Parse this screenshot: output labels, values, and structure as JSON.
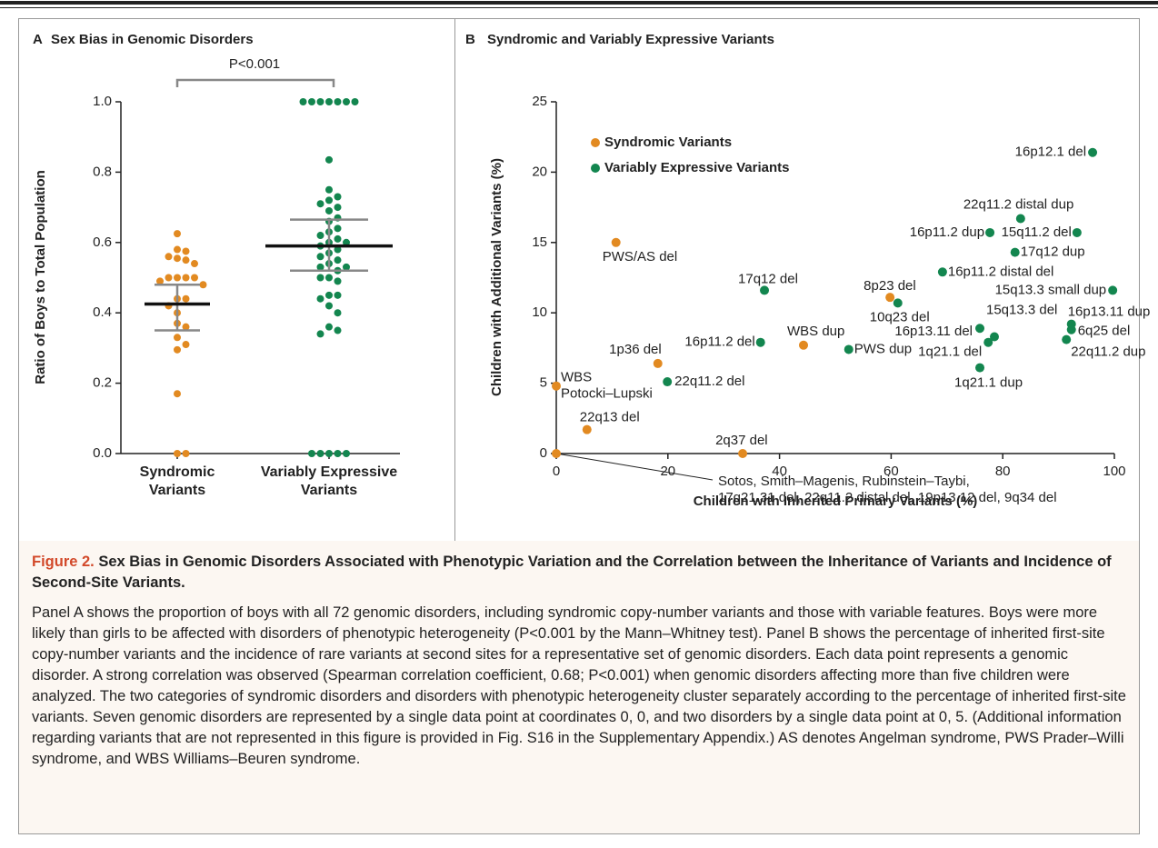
{
  "chart_data": [
    {
      "type": "strip",
      "panel": "A",
      "title": "Sex Bias in Genomic Disorders",
      "annotation": "P<0.001",
      "y_label": "Ratio of Boys to Total Population",
      "categories": [
        "Syndromic Variants",
        "Variably Expressive Variants"
      ],
      "ylim": [
        0,
        1
      ],
      "yticks": [
        {
          "value": 0,
          "label": "0.0"
        },
        0.2,
        0.4,
        0.6,
        0.8,
        {
          "value": 1,
          "label": "1.0"
        }
      ],
      "series": [
        {
          "color": "#e28a21",
          "center": 0.425,
          "range": [
            0.35,
            0.48
          ],
          "values": [
            0.625,
            0.58,
            0.575,
            0.56,
            0.555,
            0.55,
            0.54,
            0.5,
            0.5,
            0.5,
            0.5,
            0.49,
            0.48,
            0.44,
            0.44,
            0.42,
            0.4,
            0.37,
            0.36,
            0.33,
            0.31,
            0.295,
            0.17,
            0,
            0
          ]
        },
        {
          "color": "#13864f",
          "center": 0.59,
          "range": [
            0.52,
            0.665
          ],
          "values": [
            1,
            1,
            1,
            1,
            1,
            1,
            1,
            0.835,
            0.75,
            0.73,
            0.72,
            0.71,
            0.7,
            0.69,
            0.67,
            0.66,
            0.64,
            0.63,
            0.62,
            0.61,
            0.6,
            0.6,
            0.59,
            0.58,
            0.57,
            0.56,
            0.55,
            0.54,
            0.53,
            0.53,
            0.52,
            0.5,
            0.5,
            0.49,
            0.45,
            0.45,
            0.44,
            0.42,
            0.4,
            0.36,
            0.35,
            0.34,
            0,
            0,
            0,
            0,
            0
          ]
        }
      ]
    },
    {
      "type": "scatter",
      "panel": "B",
      "title": "Syndromic and Variably Expressive Variants",
      "x_label": "Children with Inherited Primary Variants (%)",
      "y_label": "Children with Additional Variants (%)",
      "xlim": [
        0,
        100
      ],
      "ylim": [
        0,
        25
      ],
      "xticks": [
        0,
        20,
        40,
        60,
        80,
        100
      ],
      "yticks": [
        0,
        5,
        10,
        15,
        20,
        25
      ],
      "legend": "upper left",
      "series": [
        {
          "name": "Syndromic Variants",
          "color": "#e28a21",
          "x": [
            0,
            5.5,
            0,
            18.2,
            10.7,
            44.3,
            59.8,
            33.4
          ],
          "values": [
            4.8,
            1.7,
            0,
            6.4,
            15,
            7.7,
            11.1,
            0
          ],
          "labels": [
            [
              "WBS",
              "Potocki–Lupski"
            ],
            "22q13 del",
            [
              "Sotos, Smith–Magenis, Rubinstein–Taybi,",
              "17q21.31 del, 22q11.2 distal del, 19p13.12 del, 9q34 del"
            ],
            "1p36 del",
            "PWS/AS del",
            "WBS dup",
            "8p23 del",
            "2q37 del"
          ]
        },
        {
          "name": "Variably Expressive Variants",
          "color": "#13864f",
          "x": [
            19.9,
            36.6,
            37.3,
            52.4,
            61.2,
            69.2,
            77.7,
            83.2,
            93.3,
            82.2,
            96.1,
            99.7,
            78.5,
            75.9,
            77.4,
            75.9,
            92.3,
            92.3,
            91.4
          ],
          "values": [
            5.1,
            7.9,
            11.6,
            7.4,
            10.7,
            12.9,
            15.7,
            16.7,
            15.7,
            14.3,
            21.4,
            11.6,
            8.3,
            8.9,
            7.9,
            6.1,
            9.2,
            8.8,
            8.1
          ],
          "labels": [
            "22q11.2 del",
            "16p11.2 del",
            "17q12 del",
            "PWS dup",
            "10q23 del",
            "16p11.2 distal del",
            "16p11.2 dup",
            "22q11.2 distal dup",
            "15q11.2 del",
            "17q12 dup",
            "16p12.1 del",
            "15q13.3 small dup",
            "15q13.3 del",
            "16p13.11 del",
            "1q21.1 del",
            "1q21.1 dup",
            "16p13.11 dup",
            "6q25 del",
            "22q11.2 dup"
          ]
        }
      ]
    }
  ],
  "caption": {
    "label": "Figure 2.",
    "title": "Sex Bias in Genomic Disorders Associated with Phenotypic Variation and the Correlation between the Inheritance of Variants and Incidence of Second-Site Variants.",
    "text": "Panel A shows the proportion of boys with all 72 genomic disorders, including syndromic copy-number variants and those with variable features. Boys were more likely than girls to be affected with disorders of phenotypic heterogeneity (P<0.001 by the Mann–Whitney test). Panel B shows the percentage of inherited first-site copy-number variants and the incidence of rare variants at second sites for a representative set of genomic disorders. Each data point represents a genomic disorder. A strong correlation was observed (Spearman correlation coefficient, 0.68; P<0.001) when genomic disorders affecting more than five children were analyzed. The two categories of syndromic disorders and disorders with phenotypic heterogeneity cluster separately according to the percentage of inherited first-site variants. Seven genomic disorders are represented by a single data point at coordinates 0, 0, and two disorders by a single data point at 0, 5. (Additional information regarding variants that are not represented in this figure is provided in Fig. S16 in the Supplementary Appendix.) AS denotes Angelman syndrome, PWS Prader–Willi syndrome, and WBS Williams–Beuren syndrome."
  }
}
